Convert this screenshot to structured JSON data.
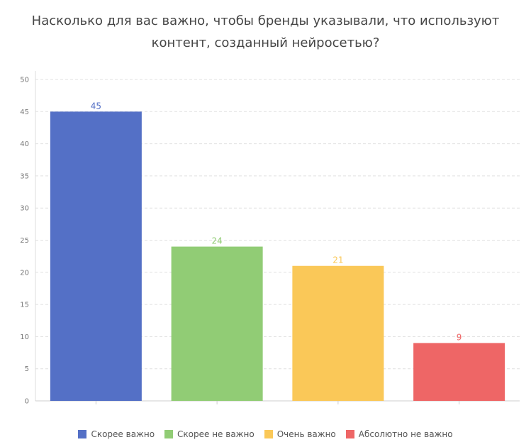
{
  "title_line1": "Насколько для вас важно, чтобы бренды указывали, что используют",
  "title_line2": "контент, созданный нейросетью?",
  "chart_data": {
    "type": "bar",
    "title": "Насколько для вас важно, чтобы бренды указывали, что используют контент, созданный нейросетью?",
    "categories": [
      "Скорее важно",
      "Скорее не важно",
      "Очень важно",
      "Абсолютно не важно"
    ],
    "values": [
      45,
      24,
      21,
      9
    ],
    "colors": [
      "#5470c6",
      "#91cc75",
      "#fac858",
      "#ee6666"
    ],
    "ylim": [
      0,
      50
    ],
    "yticks": [
      0,
      5,
      10,
      15,
      20,
      25,
      30,
      35,
      40,
      45,
      50
    ],
    "grid": true,
    "legend_position": "bottom",
    "xlabel": "",
    "ylabel": ""
  },
  "legend": [
    {
      "label": "Скорее важно",
      "color": "#5470c6"
    },
    {
      "label": "Скорее не важно",
      "color": "#91cc75"
    },
    {
      "label": "Очень важно",
      "color": "#fac858"
    },
    {
      "label": "Абсолютно не важно",
      "color": "#ee6666"
    }
  ]
}
